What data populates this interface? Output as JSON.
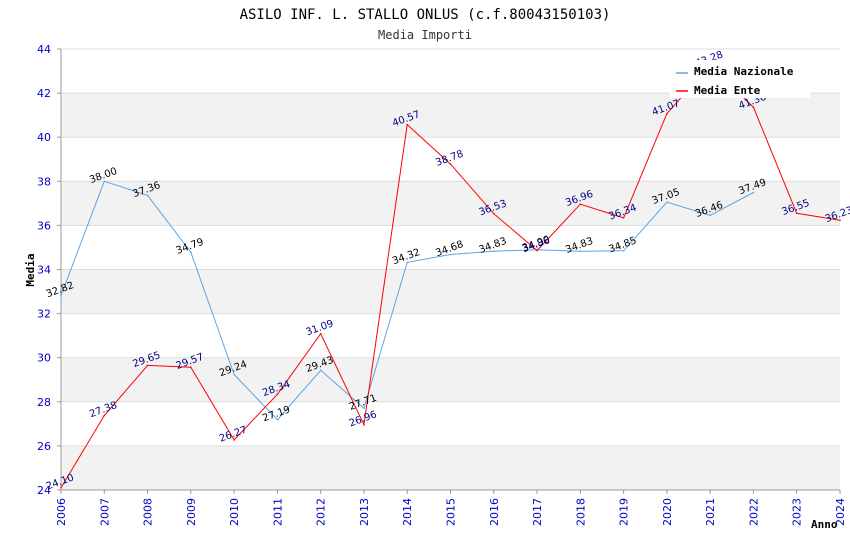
{
  "chart_data": {
    "type": "line",
    "title": "ASILO INF. L. STALLO ONLUS (c.f.80043150103)",
    "subtitle": "Media Importi",
    "xlabel": "Anno",
    "ylabel": "Media",
    "ylim": [
      24,
      44
    ],
    "yticks": [
      "24",
      "26",
      "28",
      "30",
      "32",
      "34",
      "36",
      "38",
      "40",
      "42",
      "44"
    ],
    "categories": [
      "2006",
      "2007",
      "2008",
      "2009",
      "2010",
      "2011",
      "2012",
      "2013",
      "2014",
      "2015",
      "2016",
      "2017",
      "2018",
      "2019",
      "2020",
      "2021",
      "2022",
      "2023",
      "2024"
    ],
    "series": [
      {
        "name": "Media Nazionale",
        "color": "#5aa5e6",
        "values": [
          32.82,
          38.0,
          37.36,
          34.79,
          29.24,
          27.19,
          29.43,
          27.71,
          34.32,
          34.68,
          34.83,
          34.9,
          34.83,
          34.85,
          37.05,
          36.46,
          37.49,
          null,
          null
        ],
        "labels": [
          "32.82",
          "38.00",
          "37.36",
          "34.79",
          "29.24",
          "27.19",
          "29.43",
          "27.71",
          "34.32",
          "34.68",
          "34.83",
          "34.90",
          "34.83",
          "34.85",
          "37.05",
          "36.46",
          "37.49",
          "",
          ""
        ]
      },
      {
        "name": "Media Ente",
        "color": "#ff0000",
        "values": [
          24.1,
          27.38,
          29.65,
          29.57,
          26.27,
          28.34,
          31.09,
          26.96,
          40.57,
          38.78,
          36.53,
          34.86,
          36.96,
          36.34,
          41.07,
          43.28,
          41.36,
          36.55,
          36.23
        ],
        "labels": [
          "24.10",
          "27.38",
          "29.65",
          "29.57",
          "26.27",
          "28.34",
          "31.09",
          "26.96",
          "40.57",
          "38.78",
          "36.53",
          "34.86",
          "36.96",
          "36.34",
          "41.07",
          "43.28",
          "41.36",
          "36.55",
          "36.23"
        ]
      }
    ],
    "legend_position": "top-right",
    "grid": true
  }
}
